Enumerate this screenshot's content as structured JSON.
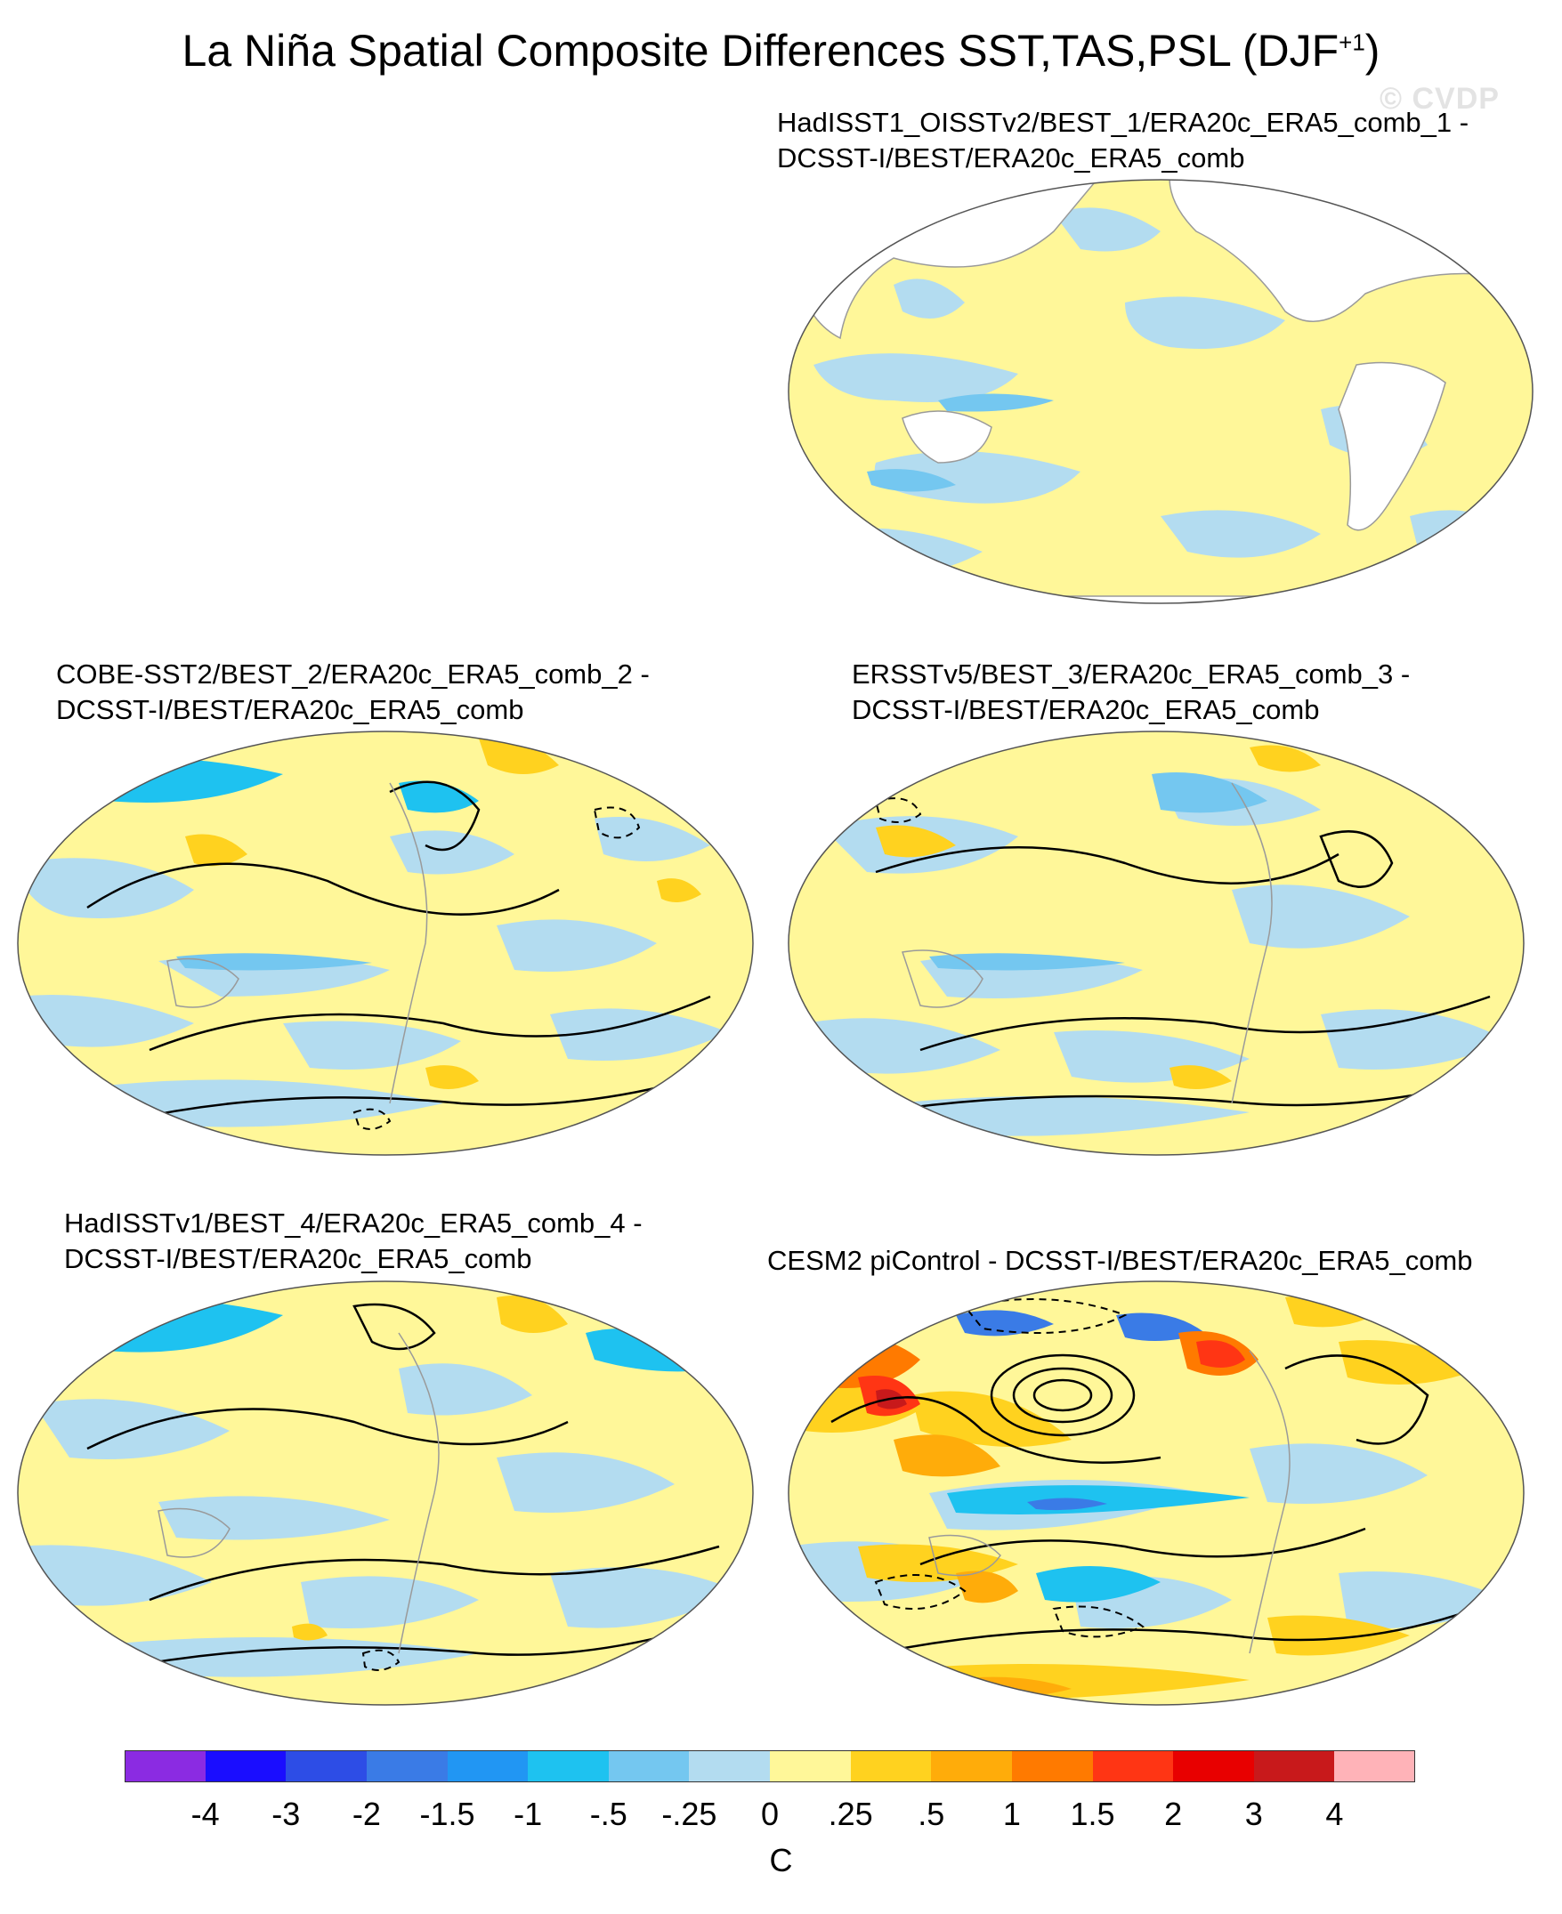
{
  "title": "La Niña Spatial Composite Differences SST,TAS,PSL (DJF",
  "title_sup": "+1",
  "title_end": ")",
  "watermark": "© CVDP",
  "panels": [
    {
      "title1": "HadISST1_OISSTv2/BEST_1/ERA20c_ERA5_comb_1 -",
      "title2": "DCSST-I/BEST/ERA20c_ERA5_comb",
      "fields": "SST only",
      "land": "white"
    },
    {
      "title1": "COBE-SST2/BEST_2/ERA20c_ERA5_comb_2 -",
      "title2": "DCSST-I/BEST/ERA20c_ERA5_comb",
      "fields": "SST, TAS, PSL"
    },
    {
      "title1": "ERSSTv5/BEST_3/ERA20c_ERA5_comb_3 -",
      "title2": "DCSST-I/BEST/ERA20c_ERA5_comb",
      "fields": "SST, TAS, PSL"
    },
    {
      "title1": "HadISSTv1/BEST_4/ERA20c_ERA5_comb_4 -",
      "title2": "DCSST-I/BEST/ERA20c_ERA5_comb",
      "fields": "SST, TAS, PSL"
    },
    {
      "title1": "CESM2 piControl - DCSST-I/BEST/ERA20c_ERA5_comb",
      "title2": "",
      "fields": "SST, TAS, PSL"
    }
  ],
  "colorbar": {
    "unit": "C",
    "colors": [
      "#8b2be2",
      "#1a0dff",
      "#2d4de6",
      "#3a7be6",
      "#2196f3",
      "#1ec2f0",
      "#74c7f0",
      "#b3dcf0",
      "#fff799",
      "#ffd21f",
      "#ffac0a",
      "#ff7a00",
      "#ff3514",
      "#e80000",
      "#c8191b",
      "#ffb3b8"
    ],
    "labels": [
      "-4",
      "-3",
      "-2",
      "-1.5",
      "-1",
      "-.5",
      "-.25",
      "0",
      ".25",
      ".5",
      "1",
      "1.5",
      "2",
      "3",
      "4"
    ]
  },
  "map_colors": {
    "ocean_base": "#fff799",
    "cool": "#b3dcf0",
    "cooler": "#74c7f0",
    "cold": "#1ec2f0",
    "colder": "#3a7be6",
    "warm": "#ffd21f",
    "warmer": "#ffac0a",
    "hot": "#ff7a00",
    "hotter": "#ff3514",
    "hottest": "#c8191b",
    "land_white": "#ffffff",
    "coast": "#9a9a9a",
    "contour": "#000000"
  }
}
